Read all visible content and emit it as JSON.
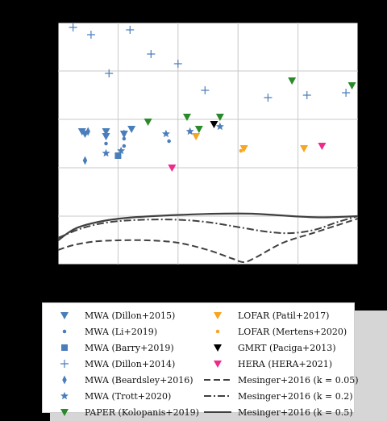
{
  "chart_data": {
    "type": "scatter",
    "title": "",
    "xlabel": "",
    "ylabel": "",
    "xlim": [
      0,
      10
    ],
    "ylim": [
      0,
      10
    ],
    "grid": true,
    "legend_position": "below",
    "colors": {
      "mwa": "#4a7ebb",
      "paper": "#2a8a2a",
      "lofar": "#f5a623",
      "gmrt": "#000000",
      "hera": "#ee2a8a",
      "model": "#404040"
    },
    "series": [
      {
        "name": "MWA (Dillon+2015)",
        "marker": "triangle-down",
        "color": "#4a7ebb",
        "points": [
          [
            0.8,
            5.5
          ],
          [
            0.9,
            5.4
          ],
          [
            1.6,
            5.5
          ],
          [
            1.6,
            5.3
          ],
          [
            2.2,
            5.4
          ],
          [
            2.45,
            5.6
          ]
        ]
      },
      {
        "name": "MWA (Li+2019)",
        "marker": "dot",
        "color": "#4a7ebb",
        "points": [
          [
            1.6,
            5.0
          ],
          [
            2.2,
            5.2
          ],
          [
            2.2,
            4.9
          ],
          [
            3.7,
            5.1
          ]
        ]
      },
      {
        "name": "MWA (Barry+2019)",
        "marker": "square",
        "color": "#4a7ebb",
        "points": [
          [
            2.0,
            4.5
          ]
        ]
      },
      {
        "name": "MWA (Dillon+2014)",
        "marker": "plus",
        "color": "#4a7ebb",
        "points": [
          [
            0.5,
            9.8
          ],
          [
            1.1,
            9.5
          ],
          [
            2.4,
            9.7
          ],
          [
            3.1,
            8.7
          ],
          [
            4.0,
            8.3
          ],
          [
            1.7,
            7.9
          ],
          [
            4.9,
            7.2
          ],
          [
            7.0,
            6.9
          ],
          [
            8.3,
            7.0
          ],
          [
            9.6,
            7.1
          ]
        ]
      },
      {
        "name": "MWA (Beardsley+2016)",
        "marker": "thin-diamond",
        "color": "#4a7ebb",
        "points": [
          [
            1.0,
            5.5
          ],
          [
            0.9,
            4.3
          ],
          [
            2.2,
            5.4
          ]
        ]
      },
      {
        "name": "MWA (Trott+2020)",
        "marker": "star",
        "color": "#4a7ebb",
        "points": [
          [
            1.6,
            4.6
          ],
          [
            2.1,
            4.7
          ],
          [
            3.6,
            5.4
          ],
          [
            4.4,
            5.5
          ],
          [
            5.4,
            5.7
          ]
        ]
      },
      {
        "name": "PAPER (Kolopanis+2019)",
        "marker": "triangle-down",
        "color": "#2a8a2a",
        "points": [
          [
            3.0,
            5.9
          ],
          [
            4.3,
            6.1
          ],
          [
            4.7,
            5.6
          ],
          [
            5.4,
            6.1
          ],
          [
            7.8,
            7.6
          ],
          [
            9.8,
            7.4
          ]
        ]
      },
      {
        "name": "LOFAR (Patil+2017)",
        "marker": "triangle-down",
        "color": "#f5a623",
        "points": [
          [
            4.6,
            5.3
          ],
          [
            6.2,
            4.8
          ],
          [
            8.2,
            4.8
          ]
        ]
      },
      {
        "name": "LOFAR (Mertens+2020)",
        "marker": "dot",
        "color": "#f5a623",
        "points": [
          [
            6.1,
            4.7
          ]
        ]
      },
      {
        "name": "GMRT (Paciga+2013)",
        "marker": "triangle-down",
        "color": "#000000",
        "points": [
          [
            5.2,
            5.8
          ]
        ]
      },
      {
        "name": "HERA (HERA+2021)",
        "marker": "triangle-down",
        "color": "#ee2a8a",
        "points": [
          [
            3.8,
            4.0
          ],
          [
            8.8,
            4.9
          ]
        ]
      },
      {
        "name": "Mesinger+2016 (k = 0.05)",
        "line": "dashed",
        "color": "#404040",
        "points": [
          [
            0.0,
            0.6
          ],
          [
            0.5,
            0.8
          ],
          [
            1.2,
            0.95
          ],
          [
            2.0,
            1.0
          ],
          [
            3.0,
            1.0
          ],
          [
            4.0,
            0.9
          ],
          [
            5.0,
            0.6
          ],
          [
            5.8,
            0.25
          ],
          [
            6.2,
            0.1
          ],
          [
            6.6,
            0.3
          ],
          [
            7.5,
            0.9
          ],
          [
            8.5,
            1.3
          ],
          [
            9.5,
            1.7
          ],
          [
            10.0,
            1.9
          ]
        ]
      },
      {
        "name": "Mesinger+2016 (k = 0.2)",
        "line": "dashdot",
        "color": "#404040",
        "points": [
          [
            0.0,
            1.1
          ],
          [
            0.8,
            1.5
          ],
          [
            1.7,
            1.75
          ],
          [
            2.8,
            1.85
          ],
          [
            4.0,
            1.85
          ],
          [
            5.0,
            1.75
          ],
          [
            6.0,
            1.55
          ],
          [
            7.0,
            1.35
          ],
          [
            7.8,
            1.3
          ],
          [
            8.6,
            1.45
          ],
          [
            9.3,
            1.75
          ],
          [
            10.0,
            2.0
          ]
        ]
      },
      {
        "name": "Mesinger+2016 (k = 0.5)",
        "line": "solid",
        "color": "#404040",
        "points": [
          [
            0.0,
            1.0
          ],
          [
            0.6,
            1.5
          ],
          [
            1.5,
            1.8
          ],
          [
            2.5,
            1.95
          ],
          [
            4.0,
            2.05
          ],
          [
            5.3,
            2.1
          ],
          [
            6.5,
            2.1
          ],
          [
            7.8,
            2.0
          ],
          [
            8.8,
            1.95
          ],
          [
            10.0,
            2.0
          ]
        ]
      }
    ]
  },
  "legend": {
    "left": [
      "MWA (Dillon+2015)",
      "MWA (Li+2019)",
      "MWA (Barry+2019)",
      "MWA (Dillon+2014)",
      "MWA (Beardsley+2016)",
      "MWA (Trott+2020)",
      "PAPER (Kolopanis+2019)"
    ],
    "right": [
      "LOFAR (Patil+2017)",
      "LOFAR (Mertens+2020)",
      "GMRT (Paciga+2013)",
      "HERA (HERA+2021)",
      "Mesinger+2016 (k = 0.05)",
      "Mesinger+2016 (k = 0.2)",
      "Mesinger+2016 (k = 0.5)"
    ]
  }
}
